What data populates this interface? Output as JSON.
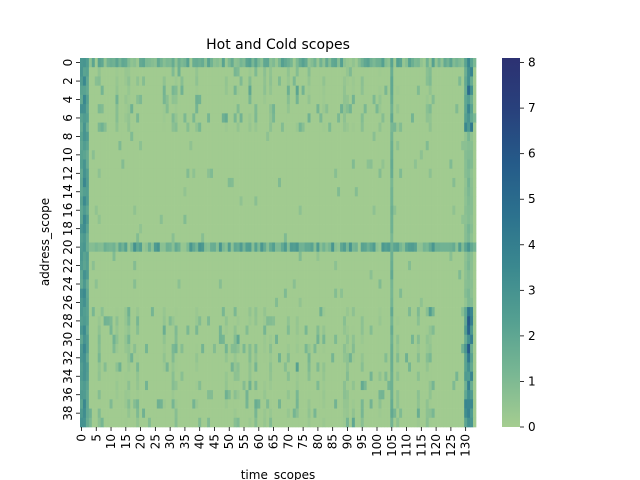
{
  "chart_data": {
    "type": "heatmap",
    "title": "Hot and Cold scopes",
    "xlabel": "time_scopes",
    "ylabel": "address_scope",
    "x_count": 134,
    "y_count": 40,
    "x_tick_labels": [
      "0",
      "5",
      "10",
      "15",
      "20",
      "25",
      "30",
      "35",
      "40",
      "45",
      "50",
      "55",
      "60",
      "65",
      "70",
      "75",
      "80",
      "85",
      "90",
      "95",
      "100",
      "105",
      "110",
      "115",
      "120",
      "125",
      "130"
    ],
    "x_tick_values": [
      0,
      5,
      10,
      15,
      20,
      25,
      30,
      35,
      40,
      45,
      50,
      55,
      60,
      65,
      70,
      75,
      80,
      85,
      90,
      95,
      100,
      105,
      110,
      115,
      120,
      125,
      130
    ],
    "y_tick_labels": [
      "0",
      "2",
      "4",
      "6",
      "8",
      "10",
      "12",
      "14",
      "16",
      "18",
      "20",
      "22",
      "24",
      "26",
      "28",
      "30",
      "32",
      "34",
      "36",
      "38"
    ],
    "y_tick_values": [
      0,
      2,
      4,
      6,
      8,
      10,
      12,
      14,
      16,
      18,
      20,
      22,
      24,
      26,
      28,
      30,
      32,
      34,
      36,
      38
    ],
    "colorbar": {
      "min": 0,
      "max": 8.1,
      "tick_labels": [
        "0",
        "1",
        "2",
        "3",
        "4",
        "5",
        "6",
        "7",
        "8"
      ],
      "tick_values": [
        0,
        1,
        2,
        3,
        4,
        5,
        6,
        7,
        8
      ],
      "colormap": "crest",
      "colors": [
        "#a5cd90",
        "#79b793",
        "#55a091",
        "#3b898f",
        "#2c728e",
        "#255b89",
        "#28417c",
        "#2c3172"
      ]
    },
    "hot_columns": [
      {
        "x": 0,
        "level": 2.6
      },
      {
        "x": 1,
        "level": 3.0
      },
      {
        "x": 2,
        "level": 2.2
      },
      {
        "x": 105,
        "level": 1.6
      },
      {
        "x": 130,
        "level": 2.0
      },
      {
        "x": 131,
        "level": 3.2
      },
      {
        "x": 132,
        "level": 2.2
      }
    ],
    "hot_rows": [
      {
        "y": 0,
        "level": 1.8
      },
      {
        "y": 20,
        "level": 2.4
      }
    ],
    "dense_row_bands": [
      [
        1,
        7
      ],
      [
        27,
        39
      ]
    ],
    "quiet_row_bands": [
      [
        8,
        19
      ],
      [
        21,
        26
      ]
    ],
    "background_value": 0.1
  }
}
